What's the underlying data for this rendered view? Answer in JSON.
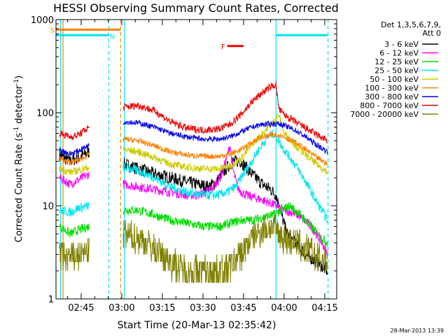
{
  "chart_data": {
    "type": "line",
    "title": "HESSI Observing Summary Count Rates, Corrected",
    "xlabel": "Start Time (20-Mar-13 02:35:42)",
    "ylabel_main": "Corrected Count Rate (s",
    "ylabel_sup1": "-1",
    "ylabel_mid": " detector",
    "ylabel_sup2": "-1",
    "ylabel_end": ")",
    "y_scale": "log",
    "xlim": [
      35.7,
      139.4
    ],
    "ylim": [
      1,
      1000
    ],
    "x_ticks": [
      {
        "value": 45,
        "label": "02:45"
      },
      {
        "value": 60,
        "label": "03:00"
      },
      {
        "value": 75,
        "label": "03:15"
      },
      {
        "value": 90,
        "label": "03:30"
      },
      {
        "value": 105,
        "label": "03:45"
      },
      {
        "value": 120,
        "label": "04:00"
      },
      {
        "value": 135,
        "label": "04:15"
      }
    ],
    "y_ticks": [
      {
        "value": 1,
        "label": "1"
      },
      {
        "value": 10,
        "label": "10"
      },
      {
        "value": 100,
        "label": "100"
      },
      {
        "value": 1000,
        "label": "1000"
      }
    ],
    "legend": {
      "placement": "right",
      "header_line1": "Det 1,3,5,6,7,9,",
      "header_line2": "Att 0"
    },
    "timestamp": "28-Mar-2013 13:39",
    "flags": [
      {
        "label": "S",
        "color": "#ff8000",
        "x_start": 35.7,
        "x_end": 59.5,
        "y": 780
      },
      {
        "label": "N",
        "color": "#00e5ee",
        "x_start": 35.7,
        "x_end": 55.2,
        "y": 680
      },
      {
        "label": "F",
        "color": "#ee0000",
        "x_start": 99,
        "x_end": 105,
        "y": 520
      },
      {
        "label": "",
        "color": "#00e5ee",
        "x_start": 117,
        "x_end": 136,
        "y": 680
      }
    ],
    "gaps": [
      {
        "x_start": 48,
        "x_end": 60.5
      },
      {
        "x_start": 137,
        "x_end": 139.4
      }
    ],
    "vlines": [
      {
        "x": 37.4,
        "color": "#00e5ee",
        "dashed": false
      },
      {
        "x": 38.3,
        "color": "#ff8000",
        "dashed": false
      },
      {
        "x": 55.2,
        "color": "#00e5ee",
        "dashed": true
      },
      {
        "x": 59.6,
        "color": "#ff8000",
        "dashed": true
      },
      {
        "x": 61.0,
        "color": "#00e5ee",
        "dashed": false
      },
      {
        "x": 117.0,
        "color": "#00e5ee",
        "dashed": false
      },
      {
        "x": 136.2,
        "color": "#00e5ee",
        "dashed": true
      }
    ],
    "series": [
      {
        "name": "3 - 6 keV",
        "color": "#000000",
        "noise": 0.07,
        "x": [
          37,
          41,
          44,
          48,
          61,
          66,
          72,
          78,
          84,
          88,
          92,
          95,
          98,
          101,
          104,
          108,
          112,
          115,
          117,
          119,
          121,
          124,
          128,
          132,
          136
        ],
        "y": [
          35,
          30,
          33,
          38,
          28,
          25,
          22,
          20,
          18,
          17,
          16,
          18,
          24,
          30,
          30,
          22,
          17,
          15,
          13,
          8,
          5,
          4,
          3,
          2.5,
          2
        ]
      },
      {
        "name": "6 - 12 keV",
        "color": "#ff00ff",
        "noise": 0.05,
        "x": [
          37,
          41,
          44,
          48,
          61,
          66,
          72,
          78,
          84,
          88,
          91,
          94,
          97,
          99,
          100,
          101,
          103,
          106,
          110,
          114,
          117,
          120,
          125,
          130,
          134,
          136
        ],
        "y": [
          20,
          17,
          19,
          22,
          17,
          16,
          15,
          14,
          13,
          13,
          14,
          16,
          22,
          35,
          45,
          25,
          15,
          13,
          12,
          11,
          10,
          9,
          8,
          6,
          4,
          3
        ]
      },
      {
        "name": "12 - 25 keV",
        "color": "#00dd00",
        "noise": 0.05,
        "x": [
          37,
          41,
          44,
          48,
          61,
          66,
          72,
          78,
          84,
          90,
          96,
          100,
          104,
          108,
          112,
          116,
          119,
          122,
          126,
          130,
          134,
          136
        ],
        "y": [
          6,
          5,
          5.5,
          6,
          9,
          9,
          8,
          7,
          6.5,
          6,
          6,
          6.5,
          7,
          7,
          7.5,
          8,
          9,
          10,
          8,
          6,
          4.5,
          4
        ]
      },
      {
        "name": "25 - 50 keV",
        "color": "#00e5ee",
        "noise": 0.05,
        "x": [
          37,
          41,
          44,
          48,
          61,
          66,
          72,
          78,
          84,
          90,
          95,
          99,
          102,
          105,
          108,
          111,
          114,
          116,
          118,
          120,
          124,
          128,
          132,
          136
        ],
        "y": [
          9,
          8.5,
          9.5,
          10,
          26,
          24,
          20,
          16,
          14,
          13,
          13,
          14,
          16,
          22,
          30,
          42,
          55,
          60,
          50,
          40,
          28,
          18,
          11,
          7
        ]
      },
      {
        "name": "50 - 100 keV",
        "color": "#cccc00",
        "noise": 0.04,
        "x": [
          37,
          41,
          44,
          48,
          61,
          66,
          72,
          78,
          84,
          90,
          96,
          100,
          104,
          108,
          112,
          116,
          118,
          120,
          124,
          128,
          132,
          136
        ],
        "y": [
          25,
          23,
          24,
          26,
          40,
          38,
          33,
          28,
          26,
          25,
          25,
          27,
          32,
          45,
          60,
          80,
          95,
          60,
          45,
          35,
          28,
          23
        ]
      },
      {
        "name": "100 - 300 keV",
        "color": "#ff8000",
        "noise": 0.03,
        "x": [
          37,
          41,
          44,
          48,
          61,
          66,
          72,
          78,
          84,
          90,
          96,
          100,
          104,
          108,
          112,
          116,
          118,
          120,
          124,
          128,
          132,
          136
        ],
        "y": [
          32,
          29,
          31,
          35,
          52,
          50,
          44,
          38,
          35,
          34,
          34,
          36,
          40,
          48,
          55,
          58,
          58,
          55,
          48,
          40,
          33,
          28
        ]
      },
      {
        "name": "300 - 800 keV",
        "color": "#0000ee",
        "noise": 0.03,
        "x": [
          37,
          41,
          44,
          48,
          61,
          66,
          72,
          78,
          84,
          90,
          96,
          100,
          104,
          108,
          112,
          116,
          118,
          120,
          124,
          128,
          132,
          136
        ],
        "y": [
          40,
          36,
          39,
          45,
          80,
          78,
          70,
          60,
          55,
          52,
          52,
          55,
          62,
          70,
          75,
          76,
          76,
          73,
          65,
          55,
          45,
          38
        ]
      },
      {
        "name": "800 - 7000 keV",
        "color": "#ee0000",
        "noise": 0.04,
        "x": [
          37,
          41,
          44,
          48,
          61,
          66,
          72,
          78,
          84,
          90,
          96,
          100,
          104,
          108,
          112,
          115,
          117,
          118,
          120,
          124,
          128,
          132,
          136
        ],
        "y": [
          60,
          55,
          58,
          70,
          115,
          120,
          105,
          80,
          68,
          65,
          67,
          75,
          95,
          130,
          165,
          190,
          200,
          110,
          95,
          80,
          68,
          58,
          50
        ]
      },
      {
        "name": "7000 - 20000 keV",
        "color": "#808000",
        "noise": 0.16,
        "x": [
          37,
          41,
          44,
          48,
          61,
          66,
          72,
          78,
          84,
          90,
          96,
          100,
          104,
          108,
          112,
          116,
          118,
          120,
          124,
          128,
          132,
          136
        ],
        "y": [
          3,
          2.8,
          2.9,
          3.2,
          5,
          4.5,
          3.5,
          2.5,
          2,
          2,
          2,
          2.2,
          3,
          4.5,
          5.5,
          6,
          5,
          4.5,
          4,
          3.5,
          2.8,
          2.5
        ]
      }
    ]
  }
}
